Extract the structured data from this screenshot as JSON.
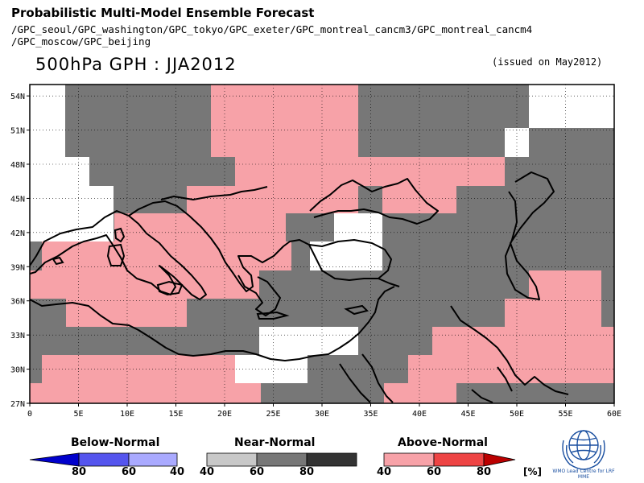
{
  "header": {
    "title": "Probabilistic Multi-Model Ensemble Forecast",
    "models_line1": "/GPC_seoul/GPC_washington/GPC_tokyo/GPC_exeter/GPC_montreal_cancm3/GPC_montreal_cancm4",
    "models_line2": "/GPC_moscow/GPC_beijing",
    "variable": "500hPa GPH : JJA2012",
    "issued": "(issued on May2012)"
  },
  "map": {
    "lon_range": [
      0,
      60
    ],
    "lat_range": [
      27,
      55
    ],
    "lon_ticks": [
      "0",
      "5E",
      "10E",
      "15E",
      "20E",
      "25E",
      "30E",
      "35E",
      "40E",
      "45E",
      "50E",
      "55E",
      "60E"
    ],
    "lat_ticks": [
      "27N",
      "30N",
      "33N",
      "36N",
      "39N",
      "42N",
      "45N",
      "48N",
      "51N",
      "54N"
    ],
    "grid": "dotted",
    "category_colors": {
      "above": "#f7a2a8",
      "near": "#777777",
      "below": "#ffffff"
    }
  },
  "legend": {
    "below": {
      "title": "Below-Normal",
      "ticks": [
        "80",
        "60",
        "40"
      ],
      "colors": [
        "#0000cc",
        "#5555ee",
        "#aaaaff"
      ]
    },
    "near": {
      "title": "Near-Normal",
      "ticks": [
        "40",
        "60",
        "80"
      ],
      "colors": [
        "#c8c8c8",
        "#777777",
        "#333333"
      ]
    },
    "above": {
      "title": "Above-Normal",
      "ticks": [
        "40",
        "60",
        "80"
      ],
      "colors": [
        "#f7a2a8",
        "#ee4444",
        "#bb0000"
      ]
    },
    "unit": "[%]"
  },
  "logo": {
    "icon": "wmo-globe-icon",
    "text": "WMO Lead Centre for LRF MME"
  }
}
